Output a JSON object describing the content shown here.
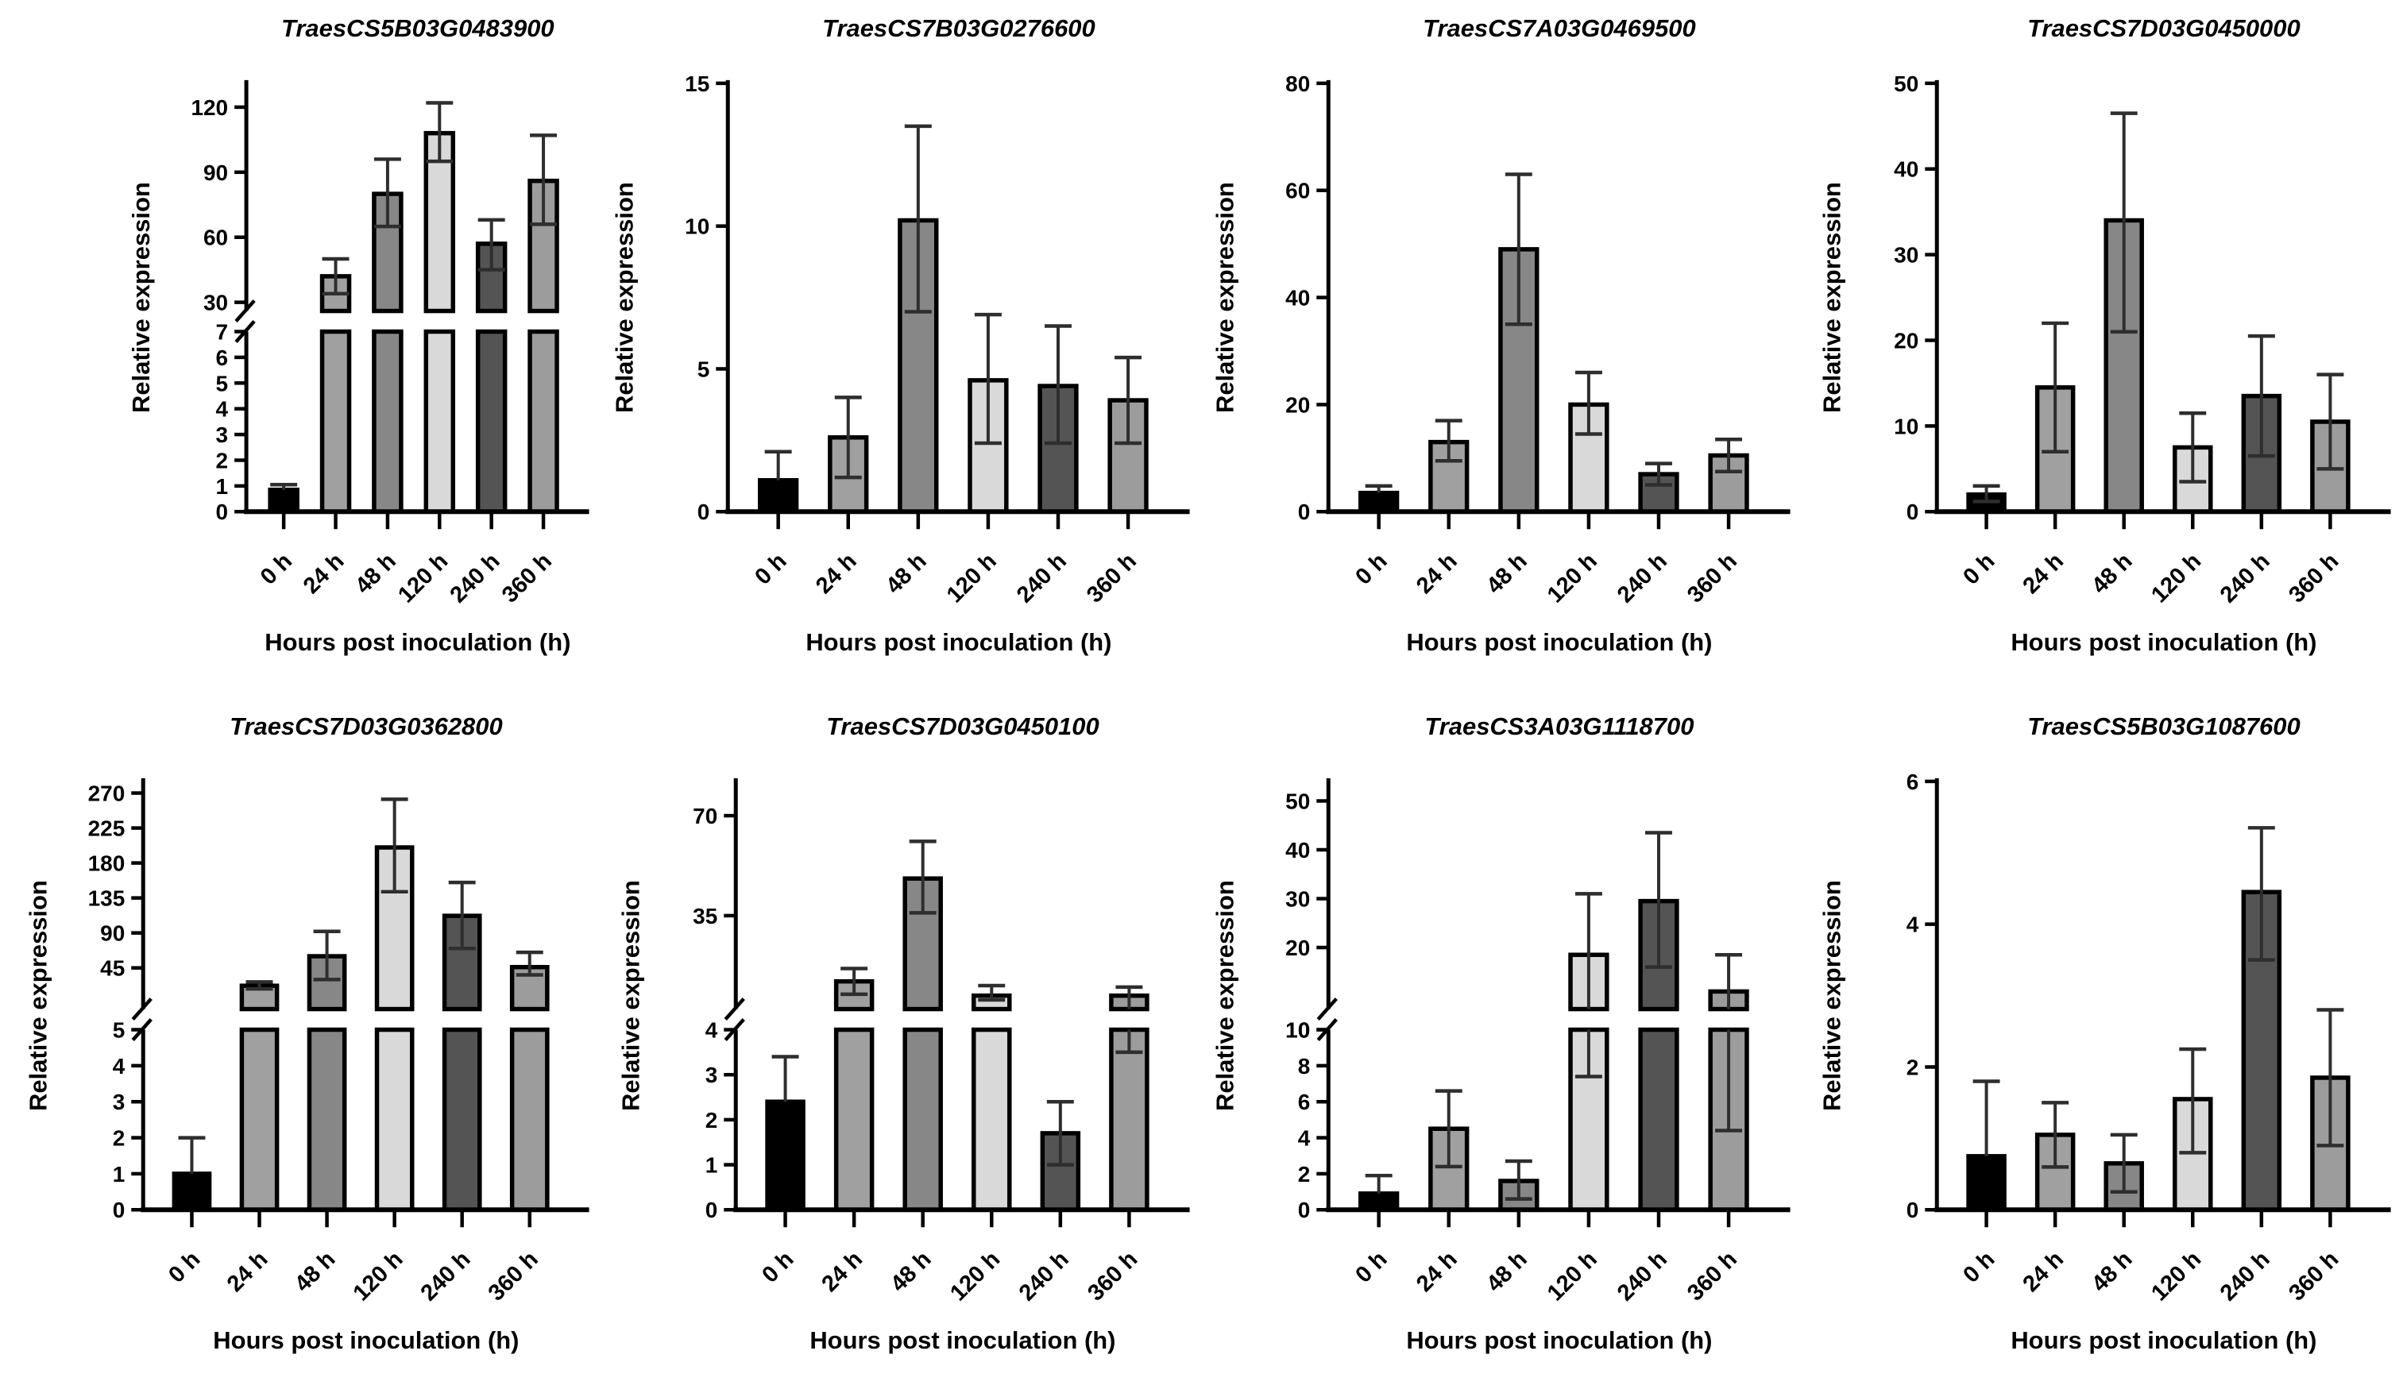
{
  "figure": {
    "columns": 4,
    "rows": 2,
    "background": "#ffffff",
    "xlabel": "Hours post inoculation (h)",
    "ylabel": "Relative expression",
    "categories": [
      "0 h",
      "24 h",
      "48 h",
      "120 h",
      "240 h",
      "360 h"
    ],
    "bar_colors": [
      "#000000",
      "#a0a0a0",
      "#878787",
      "#d9d9d9",
      "#545454",
      "#9c9c9c"
    ],
    "bar_outline_color": "#000000",
    "error_bar_color": "#2e2e2e",
    "axis_color": "#000000"
  },
  "chart_data": [
    {
      "type": "bar",
      "title": "TraesCS5B03G0483900",
      "xlabel": "Hours post inoculation (h)",
      "ylabel": "Relative expression",
      "categories": [
        "0 h",
        "24 h",
        "48 h",
        "120 h",
        "240 h",
        "360 h"
      ],
      "values": [
        0.85,
        42,
        80,
        108,
        57,
        86
      ],
      "error_low": [
        0.85,
        34,
        65,
        95,
        45,
        66
      ],
      "error_high": [
        1.05,
        50,
        96,
        122,
        68,
        107
      ],
      "broken_axis": true,
      "axis_segments": [
        {
          "range": [
            0,
            7
          ],
          "ticks": [
            0,
            1,
            2,
            3,
            4,
            5,
            6,
            7
          ]
        },
        {
          "range": [
            26,
            131
          ],
          "ticks": [
            30,
            60,
            90,
            120
          ]
        }
      ],
      "layout": {
        "indent": 150
      }
    },
    {
      "type": "bar",
      "title": "TraesCS7B03G0276600",
      "xlabel": "Hours post inoculation (h)",
      "ylabel": "Relative expression",
      "categories": [
        "0 h",
        "24 h",
        "48 h",
        "120 h",
        "240 h",
        "360 h"
      ],
      "values": [
        1.1,
        2.6,
        10.2,
        4.6,
        4.4,
        3.9
      ],
      "error_low": [
        1.1,
        1.2,
        7.0,
        2.4,
        2.4,
        2.4
      ],
      "error_high": [
        2.1,
        4.0,
        13.5,
        6.9,
        6.5,
        5.4
      ],
      "broken_axis": false,
      "axis_segments": [
        {
          "range": [
            0,
            15
          ],
          "ticks": [
            0,
            5,
            10,
            15
          ]
        }
      ],
      "layout": {
        "indent": 0
      }
    },
    {
      "type": "bar",
      "title": "TraesCS7A03G0469500",
      "xlabel": "Hours post inoculation (h)",
      "ylabel": "Relative expression",
      "categories": [
        "0 h",
        "24 h",
        "48 h",
        "120 h",
        "240 h",
        "360 h"
      ],
      "values": [
        3.5,
        13,
        49,
        20,
        7,
        10.5
      ],
      "error_low": [
        3.5,
        9.5,
        35,
        14.5,
        5,
        7.5
      ],
      "error_high": [
        4.8,
        17,
        63,
        26,
        9,
        13.5
      ],
      "broken_axis": false,
      "axis_segments": [
        {
          "range": [
            0,
            80
          ],
          "ticks": [
            0,
            20,
            40,
            60,
            80
          ]
        }
      ],
      "layout": {
        "indent": 0
      }
    },
    {
      "type": "bar",
      "title": "TraesCS7D03G0450000",
      "xlabel": "Hours post inoculation (h)",
      "ylabel": "Relative expression",
      "categories": [
        "0 h",
        "24 h",
        "48 h",
        "120 h",
        "240 h",
        "360 h"
      ],
      "values": [
        2,
        14.5,
        34,
        7.5,
        13.5,
        10.5
      ],
      "error_low": [
        1.2,
        7,
        21,
        3.5,
        6.5,
        5
      ],
      "error_high": [
        3,
        22,
        46.5,
        11.5,
        20.5,
        16
      ],
      "broken_axis": false,
      "axis_segments": [
        {
          "range": [
            0,
            50
          ],
          "ticks": [
            0,
            10,
            20,
            30,
            40,
            50
          ]
        }
      ],
      "layout": {
        "indent": 10
      }
    },
    {
      "type": "bar",
      "title": "TraesCS7D03G0362800",
      "xlabel": "Hours post inoculation (h)",
      "ylabel": "Relative expression",
      "categories": [
        "0 h",
        "24 h",
        "48 h",
        "120 h",
        "240 h",
        "360 h"
      ],
      "values": [
        1.0,
        22,
        60,
        200,
        112,
        46
      ],
      "error_low": [
        1.0,
        18,
        30,
        143,
        70,
        36
      ],
      "error_high": [
        2.0,
        27,
        92,
        262,
        155,
        65
      ],
      "broken_axis": true,
      "axis_segments": [
        {
          "range": [
            0,
            5
          ],
          "ticks": [
            0,
            1,
            2,
            3,
            4,
            5
          ]
        },
        {
          "range": [
            -8,
            285
          ],
          "ticks": [
            45,
            90,
            135,
            180,
            225,
            270
          ]
        }
      ],
      "layout": {
        "indent": 20
      }
    },
    {
      "type": "bar",
      "title": "TraesCS7D03G0450100",
      "xlabel": "Hours post inoculation (h)",
      "ylabel": "Relative expression",
      "categories": [
        "0 h",
        "24 h",
        "48 h",
        "120 h",
        "240 h",
        "360 h"
      ],
      "values": [
        2.4,
        12,
        48,
        7,
        1.7,
        7
      ],
      "error_low": [
        2.4,
        7.5,
        36,
        5.5,
        1.0,
        3.5
      ],
      "error_high": [
        3.4,
        16.5,
        61,
        10.5,
        2.4,
        10
      ],
      "broken_axis": true,
      "axis_segments": [
        {
          "range": [
            0,
            4
          ],
          "ticks": [
            0,
            1,
            2,
            3,
            4
          ]
        },
        {
          "range": [
            2.3,
            82
          ],
          "ticks": [
            35,
            70
          ]
        }
      ],
      "layout": {
        "indent": 10
      }
    },
    {
      "type": "bar",
      "title": "TraesCS3A03G1118700",
      "xlabel": "Hours post inoculation (h)",
      "ylabel": "Relative expression",
      "categories": [
        "0 h",
        "24 h",
        "48 h",
        "120 h",
        "240 h",
        "360 h"
      ],
      "values": [
        0.9,
        4.5,
        1.6,
        18.5,
        29.5,
        11
      ],
      "error_low": [
        0.9,
        2.4,
        0.6,
        7.4,
        16,
        4.4
      ],
      "error_high": [
        1.9,
        6.6,
        2.7,
        31,
        43.5,
        18.5
      ],
      "broken_axis": true,
      "axis_segments": [
        {
          "range": [
            0,
            10
          ],
          "ticks": [
            0,
            2,
            4,
            6,
            8,
            10
          ]
        },
        {
          "range": [
            7.4,
            54
          ],
          "ticks": [
            10,
            20,
            30,
            40,
            50
          ]
        }
      ],
      "layout": {
        "indent": 0
      }
    },
    {
      "type": "bar",
      "title": "TraesCS5B03G1087600",
      "xlabel": "Hours post inoculation (h)",
      "ylabel": "Relative expression",
      "categories": [
        "0 h",
        "24 h",
        "48 h",
        "120 h",
        "240 h",
        "360 h"
      ],
      "values": [
        0.75,
        1.05,
        0.65,
        1.55,
        4.45,
        1.85
      ],
      "error_low": [
        0.75,
        0.6,
        0.25,
        0.8,
        3.5,
        0.9
      ],
      "error_high": [
        1.8,
        1.5,
        1.05,
        2.25,
        5.35,
        2.8
      ],
      "broken_axis": false,
      "axis_segments": [
        {
          "range": [
            0,
            6
          ],
          "ticks": [
            0,
            2,
            4,
            6
          ]
        }
      ],
      "layout": {
        "indent": 10
      }
    }
  ]
}
